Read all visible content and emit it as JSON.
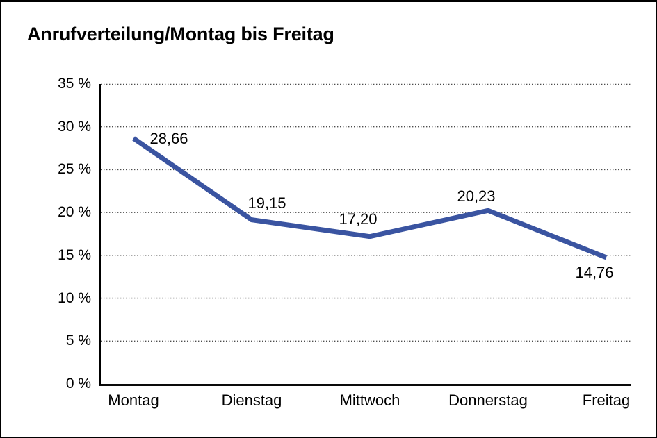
{
  "title": "Anrufverteilung/Montag bis Freitag",
  "colors": {
    "line": "#3A54A1",
    "grid_dots": "#4D4D4D",
    "axis": "#000000",
    "text": "#000000",
    "background": "#FFFFFF",
    "border": "#000000"
  },
  "chart_data": {
    "type": "line",
    "title": "Anrufverteilung/Montag bis Freitag",
    "categories": [
      "Montag",
      "Dienstag",
      "Mittwoch",
      "Donnerstag",
      "Freitag"
    ],
    "values": [
      28.66,
      19.15,
      17.2,
      20.23,
      14.76
    ],
    "value_labels": [
      "28,66",
      "19,15",
      "17,20",
      "20,23",
      "14,76"
    ],
    "series_name": "Anrufverteilung",
    "xlabel": "",
    "ylabel": "",
    "ylim": [
      0,
      35
    ],
    "y_ticks": [
      35,
      30,
      25,
      20,
      15,
      10,
      5,
      0
    ],
    "y_tick_labels": [
      "35 %",
      "30 %",
      "25 %",
      "20 %",
      "15 %",
      "10 %",
      "5 %",
      "0 %"
    ],
    "grid": "horizontal-dotted",
    "legend": "none",
    "line_color": "#3A54A1",
    "line_width": 7
  }
}
